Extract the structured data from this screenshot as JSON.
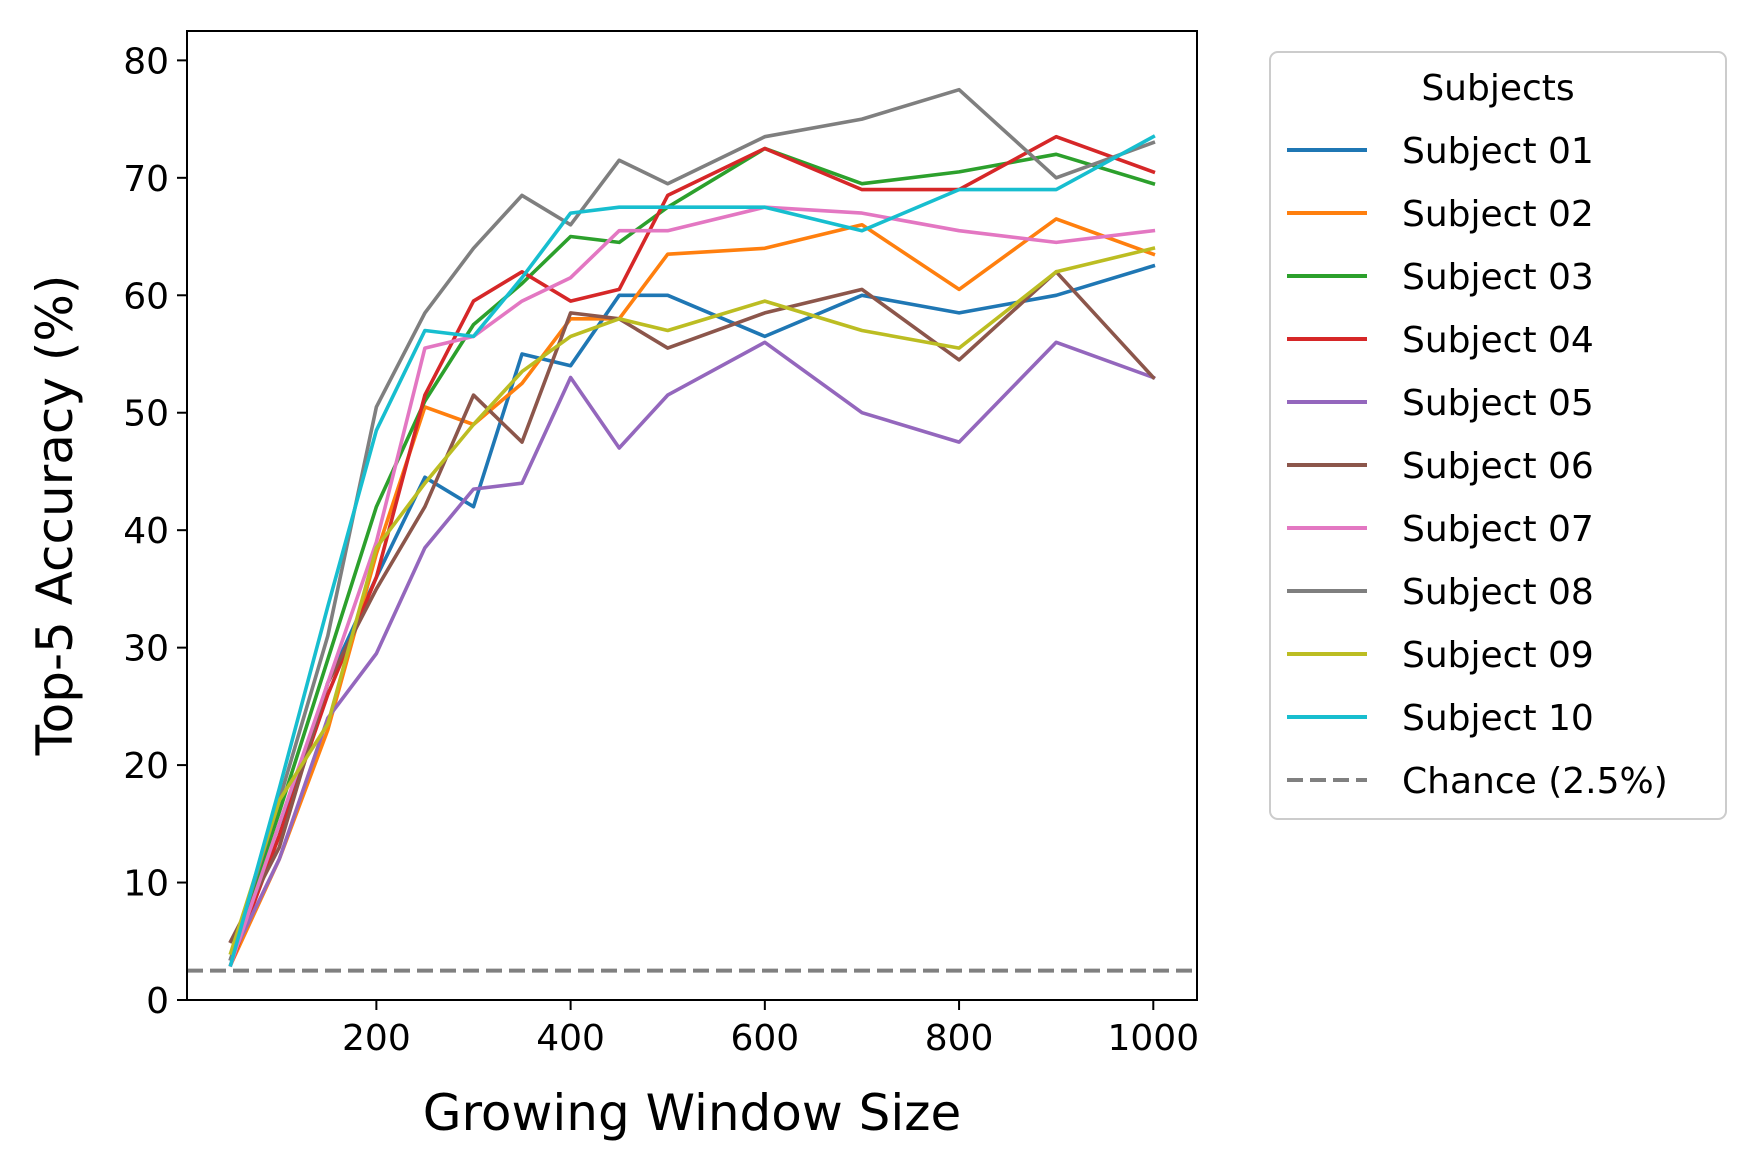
{
  "chart_data": {
    "type": "line",
    "title": "",
    "xlabel": "Growing Window Size",
    "ylabel": "Top-5 Accuracy (%)",
    "xlim": [
      5,
      1045
    ],
    "ylim": [
      0,
      82.5
    ],
    "xticks": [
      200,
      400,
      600,
      800,
      1000
    ],
    "yticks": [
      0,
      10,
      20,
      30,
      40,
      50,
      60,
      70,
      80
    ],
    "grid": false,
    "legend": {
      "title": "Subjects",
      "placement": "outside-right"
    },
    "x": [
      50,
      100,
      150,
      200,
      250,
      300,
      350,
      400,
      450,
      500,
      600,
      700,
      800,
      900,
      1000
    ],
    "series": [
      {
        "name": "Subject 01",
        "color": "#1f77b4",
        "values": [
          3.5,
          14,
          27,
          36,
          44.5,
          42,
          55,
          54,
          60,
          60,
          56.5,
          60,
          58.5,
          60,
          62.5
        ]
      },
      {
        "name": "Subject 02",
        "color": "#ff7f0e",
        "values": [
          3,
          12,
          23,
          38,
          50.5,
          49,
          52.5,
          58,
          58,
          63.5,
          64,
          66,
          60.5,
          66.5,
          63.5
        ]
      },
      {
        "name": "Subject 03",
        "color": "#2ca02c",
        "values": [
          3.5,
          16,
          29,
          42,
          51,
          57.5,
          61,
          65,
          64.5,
          67.5,
          72.5,
          69.5,
          70.5,
          72,
          69.5
        ]
      },
      {
        "name": "Subject 04",
        "color": "#d62728",
        "values": [
          3,
          14,
          26,
          36,
          51.5,
          59.5,
          62,
          59.5,
          60.5,
          68.5,
          72.5,
          69,
          69,
          73.5,
          70.5
        ]
      },
      {
        "name": "Subject 05",
        "color": "#9467bd",
        "values": [
          3.5,
          12,
          24,
          29.5,
          38.5,
          43.5,
          44,
          53,
          47,
          51.5,
          56,
          50,
          47.5,
          56,
          53
        ]
      },
      {
        "name": "Subject 06",
        "color": "#8c564b",
        "values": [
          5,
          13,
          27,
          35,
          42,
          51.5,
          47.5,
          58.5,
          58,
          55.5,
          58.5,
          60.5,
          54.5,
          62,
          53
        ]
      },
      {
        "name": "Subject 07",
        "color": "#e377c2",
        "values": [
          3,
          15,
          27,
          39,
          55.5,
          56.5,
          59.5,
          61.5,
          65.5,
          65.5,
          67.5,
          67,
          65.5,
          64.5,
          65.5
        ]
      },
      {
        "name": "Subject 08",
        "color": "#7f7f7f",
        "values": [
          3.5,
          17,
          31,
          50.5,
          58.5,
          64,
          68.5,
          66,
          71.5,
          69.5,
          73.5,
          75,
          77.5,
          70,
          73
        ]
      },
      {
        "name": "Subject 09",
        "color": "#bcbd22",
        "values": [
          4,
          17,
          23.5,
          38.5,
          44,
          49,
          53.5,
          56.5,
          58,
          57,
          59.5,
          57,
          55.5,
          62,
          64
        ]
      },
      {
        "name": "Subject 10",
        "color": "#17becf",
        "values": [
          3,
          18,
          33.5,
          48.5,
          57,
          56.5,
          61.5,
          67,
          67.5,
          67.5,
          67.5,
          65.5,
          69,
          69,
          73.5
        ]
      }
    ],
    "reference_lines": [
      {
        "name": "Chance (2.5%)",
        "y": 2.5,
        "color": "#808080",
        "style": "dashed"
      }
    ]
  }
}
